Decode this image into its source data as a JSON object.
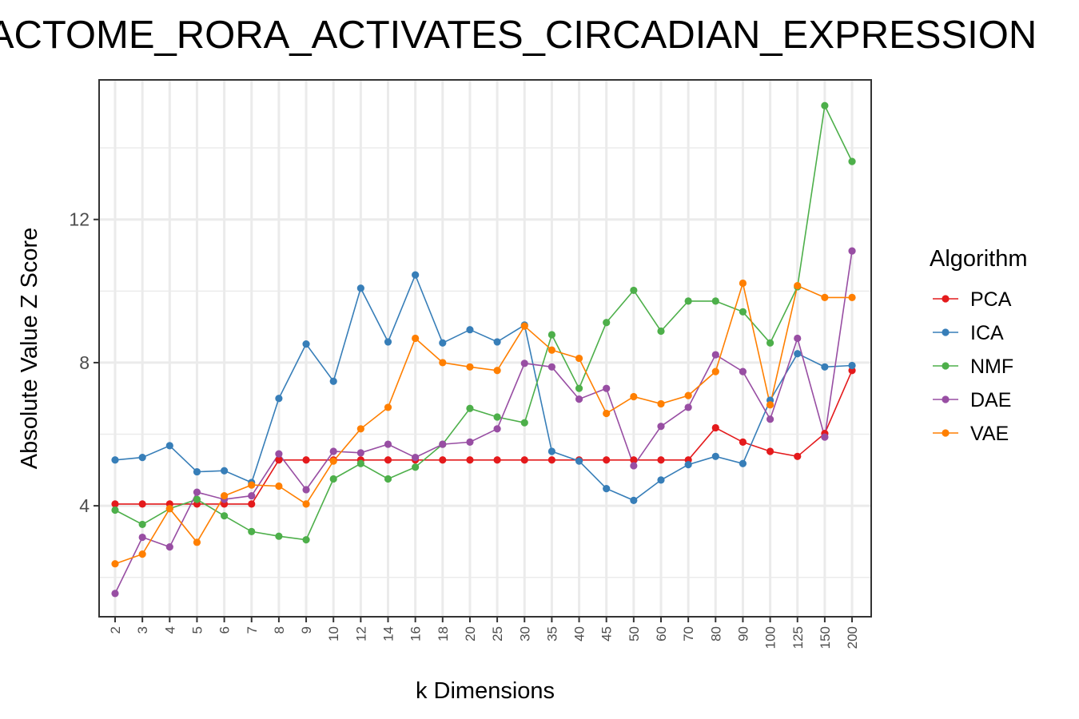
{
  "chart_data": {
    "type": "line",
    "title": "REACTOME_RORA_ACTIVATES_CIRCADIAN_EXPRESSION",
    "xlabel": "k Dimensions",
    "ylabel": "Absolute Value Z Score",
    "categories": [
      "2",
      "3",
      "4",
      "5",
      "6",
      "7",
      "8",
      "9",
      "10",
      "12",
      "14",
      "16",
      "18",
      "20",
      "25",
      "30",
      "35",
      "40",
      "45",
      "50",
      "60",
      "70",
      "80",
      "90",
      "100",
      "125",
      "150",
      "200"
    ],
    "y_ticks": [
      4,
      8,
      12
    ],
    "ylim": [
      0.9,
      15.9
    ],
    "grid": true,
    "legend": {
      "title": "Algorithm",
      "position": "right"
    },
    "series": [
      {
        "name": "PCA",
        "color": "#E41A1C",
        "values": [
          4.05,
          4.05,
          4.05,
          4.05,
          4.05,
          4.05,
          5.28,
          5.28,
          5.28,
          5.28,
          5.28,
          5.28,
          5.28,
          5.28,
          5.28,
          5.28,
          5.28,
          5.28,
          5.28,
          5.28,
          5.28,
          5.28,
          6.18,
          5.78,
          5.52,
          5.38,
          6.02,
          7.78
        ]
      },
      {
        "name": "ICA",
        "color": "#377EB8",
        "values": [
          5.28,
          5.35,
          5.68,
          4.95,
          4.98,
          4.65,
          7.0,
          8.52,
          7.48,
          10.08,
          8.58,
          10.45,
          8.55,
          8.92,
          8.58,
          9.05,
          5.52,
          5.25,
          4.48,
          4.15,
          4.72,
          5.15,
          5.38,
          5.18,
          6.95,
          8.25,
          7.88,
          7.92
        ]
      },
      {
        "name": "NMF",
        "color": "#4DAF4A",
        "values": [
          3.88,
          3.48,
          3.92,
          4.18,
          3.72,
          3.28,
          3.15,
          3.05,
          4.75,
          5.18,
          4.75,
          5.08,
          5.72,
          6.72,
          6.48,
          6.32,
          8.78,
          7.28,
          9.12,
          10.02,
          8.88,
          9.72,
          9.72,
          9.42,
          8.55,
          10.12,
          15.18,
          13.62
        ]
      },
      {
        "name": "DAE",
        "color": "#984EA3",
        "values": [
          1.55,
          3.12,
          2.85,
          4.38,
          4.18,
          4.28,
          5.45,
          4.45,
          5.52,
          5.48,
          5.72,
          5.35,
          5.72,
          5.78,
          6.15,
          7.98,
          7.88,
          6.98,
          7.28,
          5.12,
          6.22,
          6.75,
          8.22,
          7.75,
          6.42,
          8.68,
          5.92,
          11.12
        ]
      },
      {
        "name": "VAE",
        "color": "#FF7F00",
        "values": [
          2.38,
          2.65,
          3.92,
          2.98,
          4.28,
          4.58,
          4.55,
          4.05,
          5.25,
          6.15,
          6.75,
          8.68,
          8.0,
          7.88,
          7.78,
          9.02,
          8.35,
          8.12,
          6.58,
          7.05,
          6.85,
          7.08,
          7.75,
          10.22,
          6.82,
          10.15,
          9.82,
          9.82
        ]
      }
    ]
  }
}
